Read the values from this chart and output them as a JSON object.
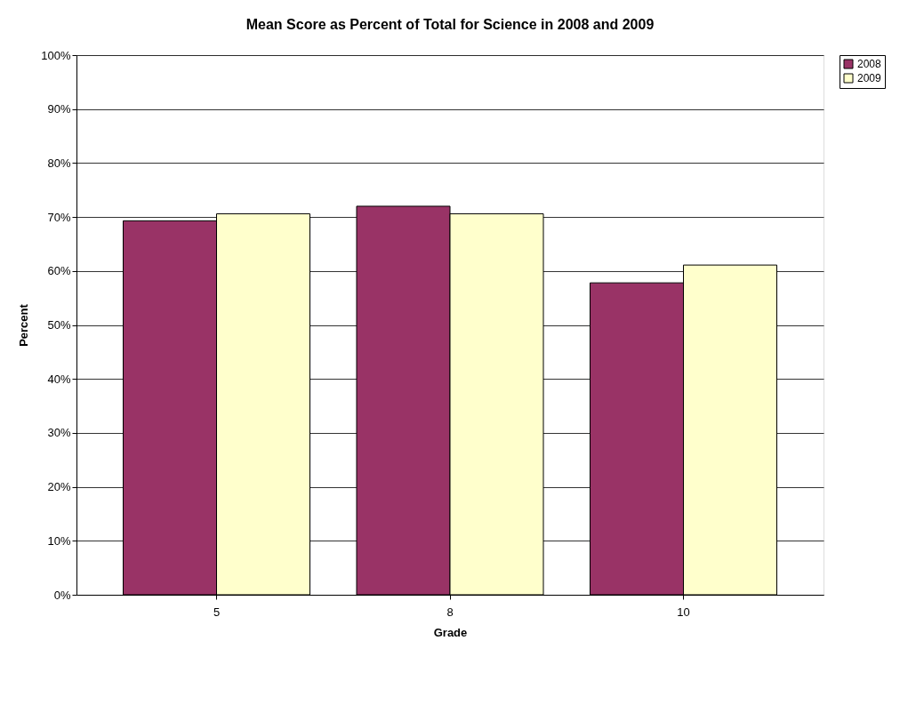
{
  "chart_data": {
    "type": "bar",
    "title": "Mean Score as Percent of Total for Science in 2008 and 2009",
    "xlabel": "Grade",
    "ylabel": "Percent",
    "categories": [
      "5",
      "8",
      "10"
    ],
    "series": [
      {
        "name": "2008",
        "color": "#993366",
        "values": [
          69.3,
          72.0,
          57.8
        ]
      },
      {
        "name": "2009",
        "color": "#ffffcc",
        "values": [
          70.6,
          70.6,
          61.1
        ]
      }
    ],
    "ylim": [
      0,
      100
    ],
    "yticks": [
      {
        "value": 0,
        "label": "0%"
      },
      {
        "value": 10,
        "label": "10%"
      },
      {
        "value": 20,
        "label": "20%"
      },
      {
        "value": 30,
        "label": "30%"
      },
      {
        "value": 40,
        "label": "40%"
      },
      {
        "value": 50,
        "label": "50%"
      },
      {
        "value": 60,
        "label": "60%"
      },
      {
        "value": 70,
        "label": "70%"
      },
      {
        "value": 80,
        "label": "80%"
      },
      {
        "value": 90,
        "label": "90%"
      },
      {
        "value": 100,
        "label": "100%"
      }
    ],
    "grid": "y",
    "legend": "right"
  }
}
